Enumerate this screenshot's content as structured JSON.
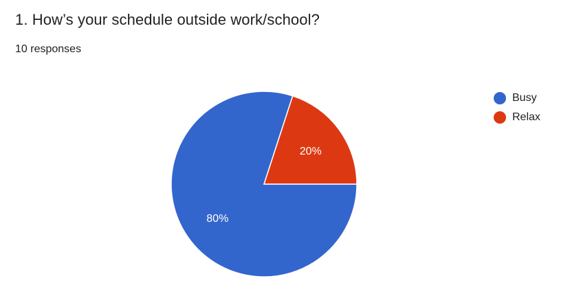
{
  "header": {
    "title": "1. How’s your schedule outside work/school?",
    "responses": "10 responses"
  },
  "colors": {
    "busy": "#3366cc",
    "relax": "#dc3912",
    "slice_stroke": "#ffffff",
    "label_text": "#ffffff"
  },
  "chart_data": {
    "type": "pie",
    "title": "1. How’s your schedule outside work/school?",
    "categories": [
      "Busy",
      "Relax"
    ],
    "values": [
      80,
      20
    ],
    "unit": "%",
    "data_labels": [
      "80%",
      "20%"
    ],
    "legend_placement": "right",
    "slice_colors": [
      "#3366cc",
      "#dc3912"
    ]
  },
  "legend": {
    "items": [
      {
        "label": "Busy",
        "color": "#3366cc"
      },
      {
        "label": "Relax",
        "color": "#dc3912"
      }
    ]
  }
}
